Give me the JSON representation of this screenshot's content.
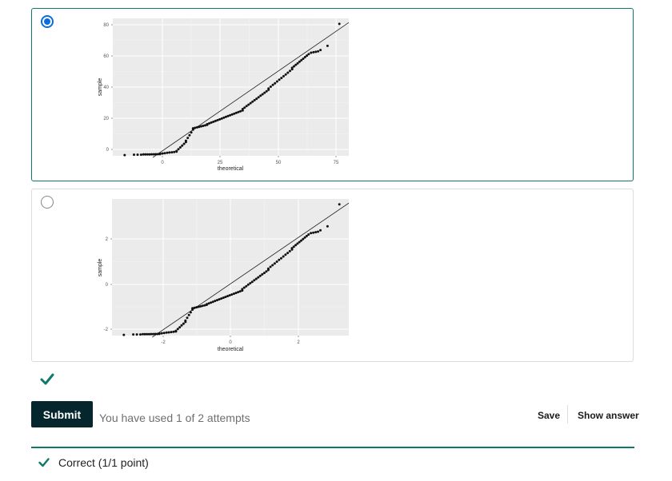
{
  "options": [
    {
      "selected": true,
      "plot": {
        "ylabel": "sample",
        "xlabel": "theoretical",
        "yticks": [
          "0",
          "20",
          "40",
          "60",
          "80"
        ],
        "xticks": [
          "0",
          "25",
          "50",
          "75"
        ]
      }
    },
    {
      "selected": false,
      "plot": {
        "ylabel": "sample",
        "xlabel": "theoretical",
        "yticks": [
          "-2",
          "0",
          "2"
        ],
        "xticks": [
          "-2",
          "0",
          "2"
        ]
      }
    }
  ],
  "status_icon": "check-icon",
  "submit": {
    "label": "Submit"
  },
  "attempts_text": "You have used 1 of 2 attempts",
  "actions": {
    "save_label": "Save",
    "show_answer_label": "Show answer"
  },
  "feedback": {
    "icon": "check-icon",
    "text": "Correct (1/1 point)"
  },
  "colors": {
    "accent": "#0d7a6b",
    "selected_radio": "#0a6cdf",
    "button_bg": "#05262d",
    "panel_bg": "#ebebeb"
  }
}
